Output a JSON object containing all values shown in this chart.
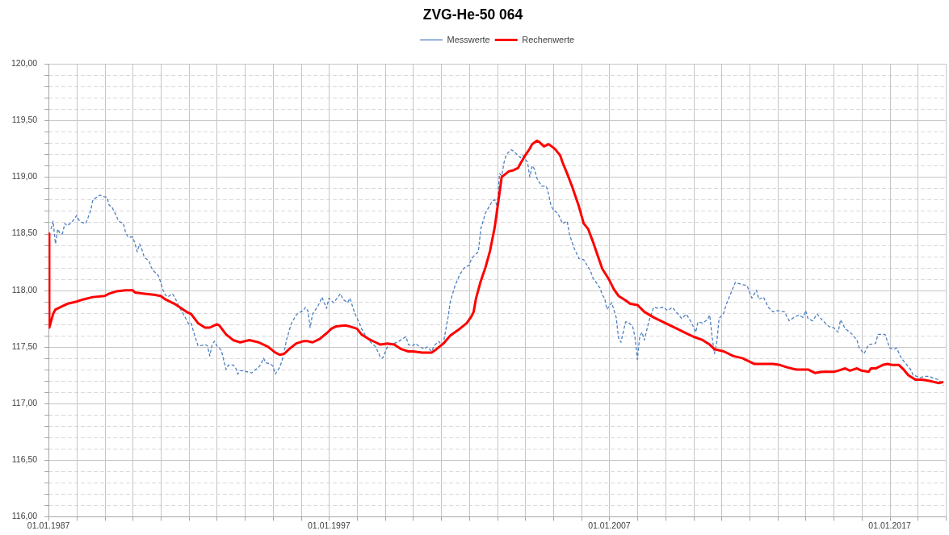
{
  "chart_data": {
    "type": "line",
    "title": "ZVG-He-50 064",
    "legend": "top",
    "grid": true,
    "xlim": [
      "1987-01-01",
      "2019-01-01"
    ],
    "xticks": [
      {
        "value": "1987-01-01",
        "label": "01.01.1987"
      },
      {
        "value": "1988-01-01",
        "label": null
      },
      {
        "value": "1989-01-01",
        "label": null
      },
      {
        "value": "1990-01-01",
        "label": null
      },
      {
        "value": "1991-01-01",
        "label": null
      },
      {
        "value": "1992-01-01",
        "label": null
      },
      {
        "value": "1993-01-01",
        "label": null
      },
      {
        "value": "1994-01-01",
        "label": null
      },
      {
        "value": "1995-01-01",
        "label": null
      },
      {
        "value": "1996-01-01",
        "label": null
      },
      {
        "value": "1997-01-01",
        "label": "01.01.1997"
      },
      {
        "value": "1998-01-01",
        "label": null
      },
      {
        "value": "1999-01-01",
        "label": null
      },
      {
        "value": "2000-01-01",
        "label": null
      },
      {
        "value": "2001-01-01",
        "label": null
      },
      {
        "value": "2002-01-01",
        "label": null
      },
      {
        "value": "2003-01-01",
        "label": null
      },
      {
        "value": "2004-01-01",
        "label": null
      },
      {
        "value": "2005-01-01",
        "label": null
      },
      {
        "value": "2006-01-01",
        "label": null
      },
      {
        "value": "2007-01-01",
        "label": "01.01.2007"
      },
      {
        "value": "2008-01-01",
        "label": null
      },
      {
        "value": "2009-01-01",
        "label": null
      },
      {
        "value": "2010-01-01",
        "label": null
      },
      {
        "value": "2011-01-01",
        "label": null
      },
      {
        "value": "2012-01-01",
        "label": null
      },
      {
        "value": "2013-01-01",
        "label": null
      },
      {
        "value": "2014-01-01",
        "label": null
      },
      {
        "value": "2015-01-01",
        "label": null
      },
      {
        "value": "2016-01-01",
        "label": null
      },
      {
        "value": "2017-01-01",
        "label": "01.01.2017"
      },
      {
        "value": "2018-01-01",
        "label": null
      },
      {
        "value": "2019-01-01",
        "label": null
      }
    ],
    "ylim": [
      116,
      120
    ],
    "yticks": [
      {
        "value": 116,
        "label": "116,00"
      },
      {
        "value": 116.1,
        "label": null
      },
      {
        "value": 116.2,
        "label": null
      },
      {
        "value": 116.3,
        "label": null
      },
      {
        "value": 116.4,
        "label": null
      },
      {
        "value": 116.5,
        "label": "116,50"
      },
      {
        "value": 116.6,
        "label": null
      },
      {
        "value": 116.7,
        "label": null
      },
      {
        "value": 116.8,
        "label": null
      },
      {
        "value": 116.9,
        "label": null
      },
      {
        "value": 117,
        "label": "117,00"
      },
      {
        "value": 117.1,
        "label": null
      },
      {
        "value": 117.2,
        "label": null
      },
      {
        "value": 117.3,
        "label": null
      },
      {
        "value": 117.4,
        "label": null
      },
      {
        "value": 117.5,
        "label": "117,50"
      },
      {
        "value": 117.6,
        "label": null
      },
      {
        "value": 117.7,
        "label": null
      },
      {
        "value": 117.8,
        "label": null
      },
      {
        "value": 117.9,
        "label": null
      },
      {
        "value": 118,
        "label": "118,00"
      },
      {
        "value": 118.1,
        "label": null
      },
      {
        "value": 118.2,
        "label": null
      },
      {
        "value": 118.3,
        "label": null
      },
      {
        "value": 118.4,
        "label": null
      },
      {
        "value": 118.5,
        "label": "118,50"
      },
      {
        "value": 118.6,
        "label": null
      },
      {
        "value": 118.7,
        "label": null
      },
      {
        "value": 118.8,
        "label": null
      },
      {
        "value": 118.9,
        "label": null
      },
      {
        "value": 119,
        "label": "119,00"
      },
      {
        "value": 119.1,
        "label": null
      },
      {
        "value": 119.2,
        "label": null
      },
      {
        "value": 119.3,
        "label": null
      },
      {
        "value": 119.4,
        "label": null
      },
      {
        "value": 119.5,
        "label": "119,50"
      },
      {
        "value": 119.6,
        "label": null
      },
      {
        "value": 119.7,
        "label": null
      },
      {
        "value": 119.8,
        "label": null
      },
      {
        "value": 119.9,
        "label": null
      },
      {
        "value": 120,
        "label": "120,00"
      }
    ],
    "series": [
      {
        "name": "Messwerte",
        "color": "#4f7fbf",
        "line_style": "dashed",
        "x": [
          "1987-02",
          "1987-03",
          "1987-04",
          "1987-05",
          "1987-06",
          "1987-07",
          "1987-08",
          "1987-09",
          "1987-11",
          "1988-01",
          "1988-02",
          "1988-03",
          "1988-05",
          "1988-07",
          "1988-08",
          "1988-11",
          "1988-12",
          "1989-02",
          "1989-03",
          "1989-04",
          "1989-06",
          "1989-07",
          "1989-09",
          "1989-10",
          "1989-11",
          "1990-01",
          "1990-02",
          "1990-03",
          "1990-04",
          "1990-05",
          "1990-06",
          "1990-08",
          "1990-09",
          "1990-10",
          "1990-12",
          "1991-01",
          "1991-02",
          "1991-03",
          "1991-04",
          "1991-06",
          "1991-07",
          "1991-09",
          "1991-11",
          "1992-01",
          "1992-02",
          "1992-03",
          "1992-05",
          "1992-06",
          "1992-08",
          "1992-09",
          "1992-10",
          "1992-11",
          "1992-12",
          "1993-01",
          "1993-03",
          "1993-04",
          "1993-05",
          "1993-06",
          "1993-08",
          "1993-09",
          "1993-10",
          "1993-11",
          "1993-12",
          "1994-02",
          "1994-04",
          "1994-05",
          "1994-07",
          "1994-08",
          "1994-09",
          "1994-10",
          "1994-12",
          "1995-01",
          "1995-02",
          "1995-04",
          "1995-05",
          "1995-06",
          "1995-07",
          "1995-09",
          "1995-11",
          "1995-12",
          "1996-02",
          "1996-03",
          "1996-04",
          "1996-05",
          "1996-06",
          "1996-08",
          "1996-09",
          "1996-10",
          "1996-12",
          "1997-01",
          "1997-03",
          "1997-06",
          "1997-07",
          "1997-09",
          "1997-10",
          "1997-12",
          "1998-02",
          "1998-03",
          "1998-05",
          "1998-07",
          "1998-09",
          "1998-11",
          "1998-12",
          "1999-02",
          "1999-03",
          "1999-05",
          "1999-07",
          "1999-10",
          "1999-11",
          "2000-01",
          "2000-02",
          "2000-04",
          "2000-06",
          "2000-07",
          "2000-09",
          "2000-10",
          "2000-12",
          "2001-01",
          "2001-02",
          "2001-04",
          "2001-05",
          "2001-07",
          "2001-09",
          "2001-11",
          "2002-01",
          "2002-02",
          "2002-03",
          "2002-05",
          "2002-06",
          "2002-07",
          "2002-08",
          "2002-11",
          "2002-12",
          "2003-01",
          "2003-02",
          "2003-03",
          "2003-04",
          "2003-05",
          "2003-07",
          "2003-08",
          "2003-10",
          "2003-11",
          "2003-12",
          "2004-02",
          "2004-03",
          "2004-04",
          "2004-05",
          "2004-06",
          "2004-08",
          "2004-10",
          "2004-11",
          "2004-12",
          "2005-01",
          "2005-03",
          "2005-05",
          "2005-07",
          "2005-08",
          "2005-10",
          "2005-12",
          "2006-02",
          "2006-03",
          "2006-05",
          "2006-06",
          "2006-09",
          "2006-10",
          "2006-11",
          "2006-12",
          "2007-02",
          "2007-04",
          "2007-05",
          "2007-06",
          "2007-08",
          "2007-09",
          "2007-10",
          "2007-11",
          "2007-12",
          "2008-01",
          "2008-02",
          "2008-03",
          "2008-04",
          "2008-06",
          "2008-08",
          "2008-10",
          "2008-12",
          "2009-02",
          "2009-04",
          "2009-06",
          "2009-08",
          "2009-10",
          "2009-12",
          "2010-02",
          "2010-03",
          "2010-05",
          "2010-07",
          "2010-08",
          "2010-09",
          "2010-10",
          "2010-11",
          "2010-12",
          "2011-02",
          "2011-03",
          "2011-05",
          "2011-07",
          "2011-10",
          "2011-12",
          "2012-02",
          "2012-04",
          "2012-05",
          "2012-07",
          "2012-09",
          "2012-11",
          "2013-01",
          "2013-04",
          "2013-06",
          "2013-08",
          "2013-10",
          "2013-12",
          "2014-01",
          "2014-02",
          "2014-04",
          "2014-06",
          "2014-08",
          "2014-11",
          "2015-01",
          "2015-03",
          "2015-04",
          "2015-06",
          "2015-08",
          "2015-09",
          "2015-11",
          "2015-12",
          "2016-02",
          "2016-04",
          "2016-07",
          "2016-08",
          "2016-10",
          "2016-11",
          "2016-12",
          "2017-01",
          "2017-03",
          "2017-04",
          "2017-06",
          "2017-08",
          "2017-10",
          "2017-11",
          "2018-02",
          "2018-04",
          "2018-06",
          "2018-08",
          "2018-10",
          "2018-12"
        ],
        "values": [
          118.54,
          118.61,
          118.41,
          118.54,
          118.5,
          118.5,
          118.59,
          118.57,
          118.6,
          118.66,
          118.62,
          118.6,
          118.59,
          118.7,
          118.8,
          118.84,
          118.83,
          118.82,
          118.75,
          118.74,
          118.66,
          118.61,
          118.59,
          118.51,
          118.47,
          118.47,
          118.41,
          118.34,
          118.41,
          118.36,
          118.29,
          118.26,
          118.2,
          118.17,
          118.13,
          118.07,
          118.0,
          117.96,
          117.94,
          117.97,
          117.94,
          117.85,
          117.78,
          117.7,
          117.71,
          117.64,
          117.51,
          117.51,
          117.52,
          117.51,
          117.42,
          117.52,
          117.55,
          117.51,
          117.47,
          117.38,
          117.3,
          117.34,
          117.34,
          117.32,
          117.26,
          117.29,
          117.29,
          117.28,
          117.27,
          117.29,
          117.32,
          117.35,
          117.4,
          117.36,
          117.35,
          117.33,
          117.26,
          117.32,
          117.38,
          117.47,
          117.57,
          117.71,
          117.78,
          117.8,
          117.82,
          117.85,
          117.82,
          117.67,
          117.79,
          117.85,
          117.89,
          117.94,
          117.84,
          117.93,
          117.89,
          117.97,
          117.92,
          117.89,
          117.93,
          117.8,
          117.71,
          117.66,
          117.59,
          117.54,
          117.5,
          117.41,
          117.4,
          117.5,
          117.52,
          117.53,
          117.55,
          117.59,
          117.52,
          117.51,
          117.53,
          117.5,
          117.48,
          117.5,
          117.46,
          117.51,
          117.55,
          117.52,
          117.54,
          117.76,
          117.9,
          118.04,
          118.14,
          118.2,
          118.22,
          118.28,
          118.3,
          118.34,
          118.54,
          118.61,
          118.68,
          118.79,
          118.8,
          118.74,
          119.03,
          119.01,
          119.13,
          119.2,
          119.24,
          119.23,
          119.19,
          119.17,
          119.19,
          119.13,
          119.0,
          119.1,
          119.07,
          118.99,
          118.92,
          118.92,
          118.85,
          118.75,
          118.71,
          118.68,
          118.59,
          118.61,
          118.49,
          118.37,
          118.28,
          118.27,
          118.24,
          118.17,
          118.11,
          118.02,
          117.96,
          117.93,
          117.83,
          117.89,
          117.76,
          117.58,
          117.54,
          117.72,
          117.72,
          117.7,
          117.68,
          117.59,
          117.39,
          117.59,
          117.63,
          117.56,
          117.73,
          117.85,
          117.84,
          117.85,
          117.82,
          117.85,
          117.8,
          117.75,
          117.79,
          117.72,
          117.63,
          117.72,
          117.71,
          117.74,
          117.78,
          117.59,
          117.44,
          117.54,
          117.75,
          117.8,
          117.87,
          117.97,
          118.07,
          118.05,
          118.04,
          117.93,
          118.0,
          117.92,
          117.94,
          117.85,
          117.81,
          117.82,
          117.81,
          117.73,
          117.76,
          117.78,
          117.76,
          117.82,
          117.75,
          117.73,
          117.79,
          117.74,
          117.68,
          117.67,
          117.63,
          117.74,
          117.66,
          117.63,
          117.61,
          117.56,
          117.49,
          117.44,
          117.52,
          117.53,
          117.61,
          117.61,
          117.61,
          117.55,
          117.49,
          117.48,
          117.49,
          117.4,
          117.35,
          117.3,
          117.25,
          117.23,
          117.24,
          117.24,
          117.22,
          117.21,
          117.16
        ]
      },
      {
        "name": "Rechenwerte",
        "color": "#ff0000",
        "line_style": "solid",
        "x": [
          "1987-01-01",
          "1987-01-10",
          "1987-03",
          "1987-04",
          "1987-07",
          "1987-09",
          "1988-01",
          "1988-04",
          "1988-08",
          "1989-01",
          "1989-03",
          "1989-06",
          "1989-10",
          "1990-01",
          "1990-02",
          "1990-06",
          "1990-10",
          "1991-01",
          "1991-03",
          "1991-07",
          "1991-12",
          "1992-02",
          "1992-05",
          "1992-08",
          "1992-10",
          "1993-01",
          "1993-02",
          "1993-05",
          "1993-08",
          "1993-11",
          "1994-03",
          "1994-07",
          "1994-11",
          "1995-02",
          "1995-04",
          "1995-06",
          "1995-08",
          "1995-11",
          "1996-02",
          "1996-04",
          "1996-06",
          "1996-09",
          "1996-12",
          "1997-02",
          "1997-04",
          "1997-08",
          "1997-10",
          "1998-01",
          "1998-03",
          "1998-06",
          "1998-09",
          "1998-11",
          "1999-02",
          "1999-05",
          "1999-08",
          "1999-11",
          "2000-01",
          "2000-05",
          "2000-09",
          "2000-11",
          "2001-02",
          "2001-05",
          "2001-09",
          "2001-12",
          "2002-02",
          "2002-03",
          "2002-04",
          "2002-06",
          "2002-08",
          "2002-10",
          "2002-12",
          "2003-01",
          "2003-02",
          "2003-03",
          "2003-06",
          "2003-08",
          "2003-10",
          "2003-11",
          "2004-01",
          "2004-03",
          "2004-04",
          "2004-06",
          "2004-07",
          "2004-09",
          "2004-10",
          "2004-11",
          "2005-01",
          "2005-02",
          "2005-04",
          "2005-05",
          "2005-07",
          "2005-09",
          "2005-12",
          "2006-02",
          "2006-04",
          "2006-06",
          "2006-08",
          "2006-10",
          "2007-01",
          "2007-03",
          "2007-05",
          "2007-08",
          "2007-10",
          "2008-01",
          "2008-04",
          "2008-08",
          "2008-11",
          "2009-03",
          "2009-06",
          "2009-10",
          "2010-01",
          "2010-05",
          "2010-08",
          "2010-10",
          "2011-02",
          "2011-06",
          "2011-10",
          "2012-01",
          "2012-03",
          "2012-07",
          "2012-11",
          "2013-02",
          "2013-05",
          "2013-09",
          "2013-11",
          "2014-02",
          "2014-05",
          "2014-08",
          "2015-01",
          "2015-03",
          "2015-06",
          "2015-08",
          "2015-11",
          "2016-01",
          "2016-04",
          "2016-05",
          "2016-07",
          "2016-10",
          "2016-12",
          "2017-02",
          "2017-05",
          "2017-07",
          "2017-09",
          "2017-12",
          "2018-03",
          "2018-06",
          "2018-08",
          "2018-10",
          "2018-12"
        ],
        "values": [
          118.5,
          117.67,
          117.79,
          117.83,
          117.86,
          117.88,
          117.9,
          117.92,
          117.94,
          117.95,
          117.97,
          117.99,
          118.0,
          118.0,
          117.98,
          117.97,
          117.96,
          117.95,
          117.92,
          117.88,
          117.81,
          117.79,
          117.71,
          117.67,
          117.67,
          117.7,
          117.69,
          117.61,
          117.56,
          117.54,
          117.56,
          117.54,
          117.5,
          117.45,
          117.43,
          117.44,
          117.48,
          117.53,
          117.55,
          117.55,
          117.54,
          117.57,
          117.62,
          117.66,
          117.68,
          117.69,
          117.68,
          117.66,
          117.61,
          117.57,
          117.54,
          117.52,
          117.53,
          117.52,
          117.48,
          117.46,
          117.46,
          117.45,
          117.45,
          117.48,
          117.53,
          117.6,
          117.66,
          117.71,
          117.77,
          117.81,
          117.93,
          118.08,
          118.2,
          118.35,
          118.56,
          118.71,
          118.86,
          119.0,
          119.05,
          119.06,
          119.08,
          119.12,
          119.19,
          119.25,
          119.29,
          119.32,
          119.31,
          119.27,
          119.28,
          119.29,
          119.26,
          119.24,
          119.19,
          119.13,
          119.03,
          118.92,
          118.74,
          118.59,
          118.54,
          118.43,
          118.31,
          118.19,
          118.09,
          118.01,
          117.95,
          117.91,
          117.88,
          117.87,
          117.81,
          117.76,
          117.73,
          117.69,
          117.66,
          117.62,
          117.59,
          117.56,
          117.52,
          117.48,
          117.46,
          117.42,
          117.4,
          117.37,
          117.35,
          117.35,
          117.35,
          117.34,
          117.32,
          117.3,
          117.3,
          117.3,
          117.27,
          117.28,
          117.28,
          117.29,
          117.31,
          117.29,
          117.31,
          117.29,
          117.28,
          117.31,
          117.31,
          117.34,
          117.35,
          117.34,
          117.34,
          117.3,
          117.25,
          117.21,
          117.21,
          117.2,
          117.19,
          117.18,
          117.19
        ]
      }
    ]
  }
}
